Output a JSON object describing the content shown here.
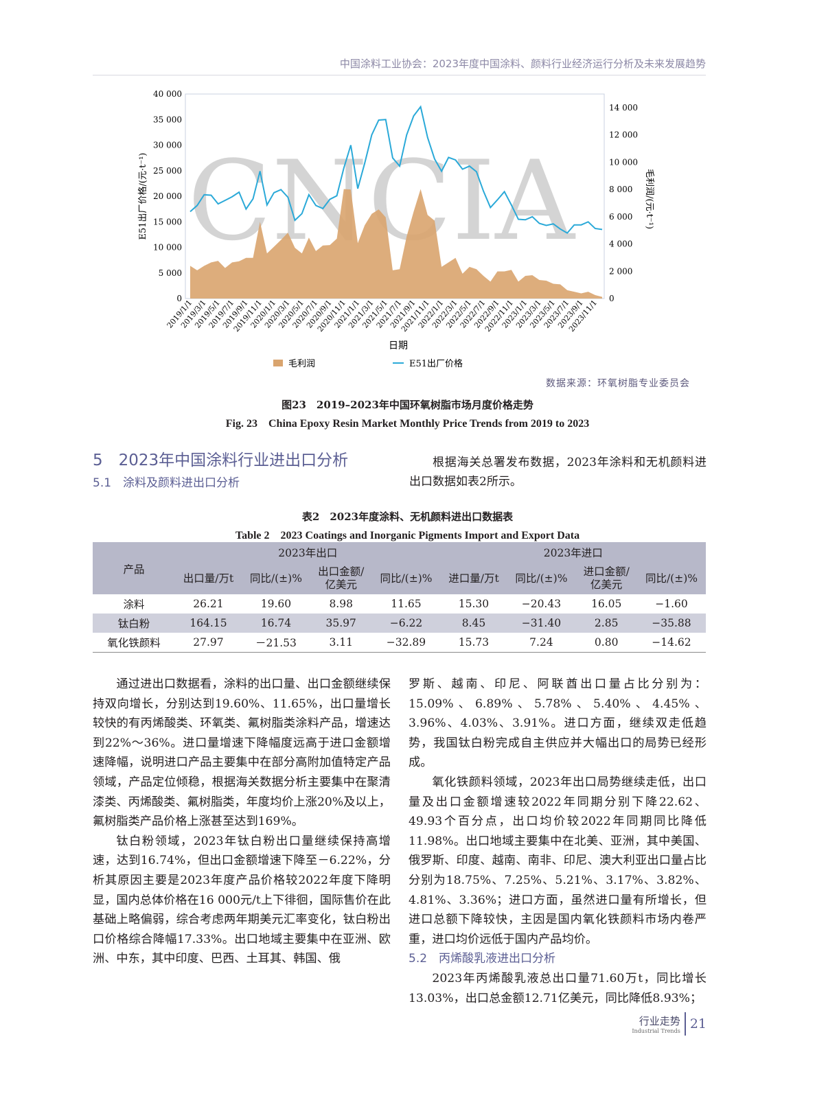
{
  "header": {
    "running_title": "中国涂料工业协会：2023年度中国涂料、颜料行业经济运行分析及未来发展趋势"
  },
  "figure": {
    "watermark": "CNCIA",
    "source": "数据来源：环氧树脂专业委员会",
    "caption_cn": "图23　2019–2023年中国环氧树脂市场月度价格走势",
    "caption_en": "Fig. 23　China Epoxy Resin Market Monthly Price Trends from 2019 to 2023"
  },
  "chart_data": {
    "type": "line+area",
    "xlabel": "日期",
    "ylabel_left": "E51出厂价格/(元·t⁻¹)",
    "ylabel_right": "毛利润/(元·t⁻¹)",
    "ylim_left": [
      0,
      40000
    ],
    "ylim_right": [
      0,
      15000
    ],
    "yticks_left": [
      "0",
      "5 000",
      "10 000",
      "15 000",
      "20 000",
      "25 000",
      "30 000",
      "35 000",
      "40 000"
    ],
    "yticks_right": [
      "0",
      "2 000",
      "4 000",
      "6 000",
      "8 000",
      "10 000",
      "12 000",
      "14 000"
    ],
    "xtick_labels": [
      "2019/1/1",
      "2019/3/1",
      "2019/5/1",
      "2019/7/1",
      "2019/9/1",
      "2019/11/1",
      "2020/1/1",
      "2020/3/1",
      "2020/5/1",
      "2020/7/1",
      "2020/9/1",
      "2020/11/1",
      "2021/1/1",
      "2021/3/1",
      "2021/5/1",
      "2021/7/1",
      "2021/9/1",
      "2021/11/1",
      "2022/1/1",
      "2022/3/1",
      "2022/5/1",
      "2022/7/1",
      "2022/9/1",
      "2022/11/1",
      "2023/1/1",
      "2023/3/1",
      "2023/5/1",
      "2023/7/1",
      "2023/9/1",
      "2023/11/1"
    ],
    "legend_position": "bottom",
    "series": [
      {
        "name": "毛利润",
        "type": "area",
        "axis": "right",
        "color": "#d9a46e",
        "values": [
          2400,
          2070,
          2400,
          2650,
          2760,
          2240,
          2650,
          2730,
          2980,
          2980,
          5630,
          3310,
          3800,
          4300,
          4830,
          3720,
          3310,
          4470,
          3480,
          3890,
          3920,
          4390,
          8030,
          8000,
          4060,
          5380,
          6210,
          6540,
          5960,
          2070,
          2150,
          4550,
          6370,
          8030,
          6130,
          5710,
          2320,
          2650,
          2980,
          1820,
          2320,
          2150,
          1660,
          1240,
          1990,
          1990,
          2100,
          1240,
          1660,
          1710,
          1360,
          1310,
          1080,
          1040,
          610,
          500,
          380,
          500,
          250,
          120
        ]
      },
      {
        "name": "E51出厂价格",
        "type": "line",
        "axis": "left",
        "color": "#2aa9d8",
        "values": [
          17000,
          18200,
          20300,
          20200,
          18500,
          19200,
          19900,
          20800,
          17500,
          19500,
          24900,
          18300,
          20700,
          21300,
          19800,
          15300,
          16600,
          20300,
          18200,
          17600,
          19400,
          20100,
          25500,
          30000,
          21500,
          26500,
          32000,
          34900,
          35000,
          27500,
          25900,
          32000,
          35700,
          37500,
          31500,
          27300,
          24900,
          27600,
          27100,
          25300,
          25900,
          24800,
          21000,
          17800,
          19300,
          20900,
          18300,
          15500,
          15400,
          16000,
          14700,
          14300,
          14600,
          13600,
          12800,
          14400,
          14400,
          15000,
          13700,
          13500
        ]
      }
    ]
  },
  "section5": {
    "title": "5　2023年中国涂料行业进出口分析",
    "sub1": "5.1　涂料及颜料进出口分析",
    "intro": "根据海关总署发布数据，2023年涂料和无机颜料进出口数据如表2所示。"
  },
  "table": {
    "title_cn": "表2　2023年度涂料、无机颜料进出口数据表",
    "title_en": "Table 2　2023 Coatings and Inorganic Pigments Import and Export Data",
    "product_header": "产品",
    "group_export": "2023年出口",
    "group_import": "2023年进口",
    "columns": [
      "出口量/万t",
      "同比/(±)%",
      "出口金额/亿美元",
      "同比/(±)%",
      "进口量/万t",
      "同比/(±)%",
      "进口金额/亿美元",
      "同比/(±)%"
    ],
    "rows": [
      [
        "涂料",
        "26.21",
        "19.60",
        "8.98",
        "11.65",
        "15.30",
        "−20.43",
        "16.05",
        "−1.60"
      ],
      [
        "钛白粉",
        "164.15",
        "16.74",
        "35.97",
        "−6.22",
        "8.45",
        "−31.40",
        "2.85",
        "−35.88"
      ],
      [
        "氧化铁颜料",
        "27.97",
        "－21.53",
        "3.11",
        "−32.89",
        "15.73",
        "7.24",
        "0.80",
        "−14.62"
      ]
    ]
  },
  "body": {
    "left": [
      "通过进出口数据看，涂料的出口量、出口金额继续保持双向增长，分别达到19.60%、11.65%，出口量增长较快的有丙烯酸类、环氧类、氟树脂类涂料产品，增速达到22%～36%。进口量增速下降幅度远高于进口金额增速降幅，说明进口产品主要集中在部分高附加值特定产品领域，产品定位倾稳，根据海关数据分析主要集中在聚清漆类、丙烯酸类、氟树脂类，年度均价上涨20%及以上，氟树脂类产品价格上涨甚至达到169%。",
      "钛白粉领域，2023年钛白粉出口量继续保持高增速，达到16.74%，但出口金额增速下降至－6.22%，分析其原因主要是2023年度产品价格较2022年度下降明显，国内总体价格在16 000元/t上下徘徊，国际售价在此基础上略偏弱，综合考虑两年期美元汇率变化，钛白粉出口价格综合降幅17.33%。出口地域主要集中在亚洲、欧洲、中东，其中印度、巴西、土耳其、韩国、俄"
    ],
    "right": [
      "罗斯、越南、印尼、阿联酋出口量占比分别为：15.09%、6.89%、5.78%、5.40%、4.45%、3.96%、4.03%、3.91%。进口方面，继续双走低趋势，我国钛白粉完成自主供应并大幅出口的局势已经形成。",
      "氧化铁颜料领域，2023年出口局势继续走低，出口量及出口金额增速较2022年同期分别下降22.62、49.93个百分点，出口均价较2022年同期同比降低11.98%。出口地域主要集中在北美、亚洲，其中美国、俄罗斯、印度、越南、南非、印尼、澳大利亚出口量占比分别为18.75%、7.25%、5.21%、3.17%、3.82%、4.81%、3.36%；进口方面，虽然进口量有所增长，但进口总额下降较快，主因是国内氧化铁颜料市场内卷严重，进口均价远低于国内产品均价。"
    ],
    "sub2": "5.2　丙烯酸乳液进出口分析",
    "right_last": "2023年丙烯酸乳液总出口量71.60万t，同比增长13.03%，出口总金额12.71亿美元，同比降低8.93%；"
  },
  "footer": {
    "section_cn": "行业走势",
    "section_en": "Industrial Trends",
    "page": "21"
  }
}
